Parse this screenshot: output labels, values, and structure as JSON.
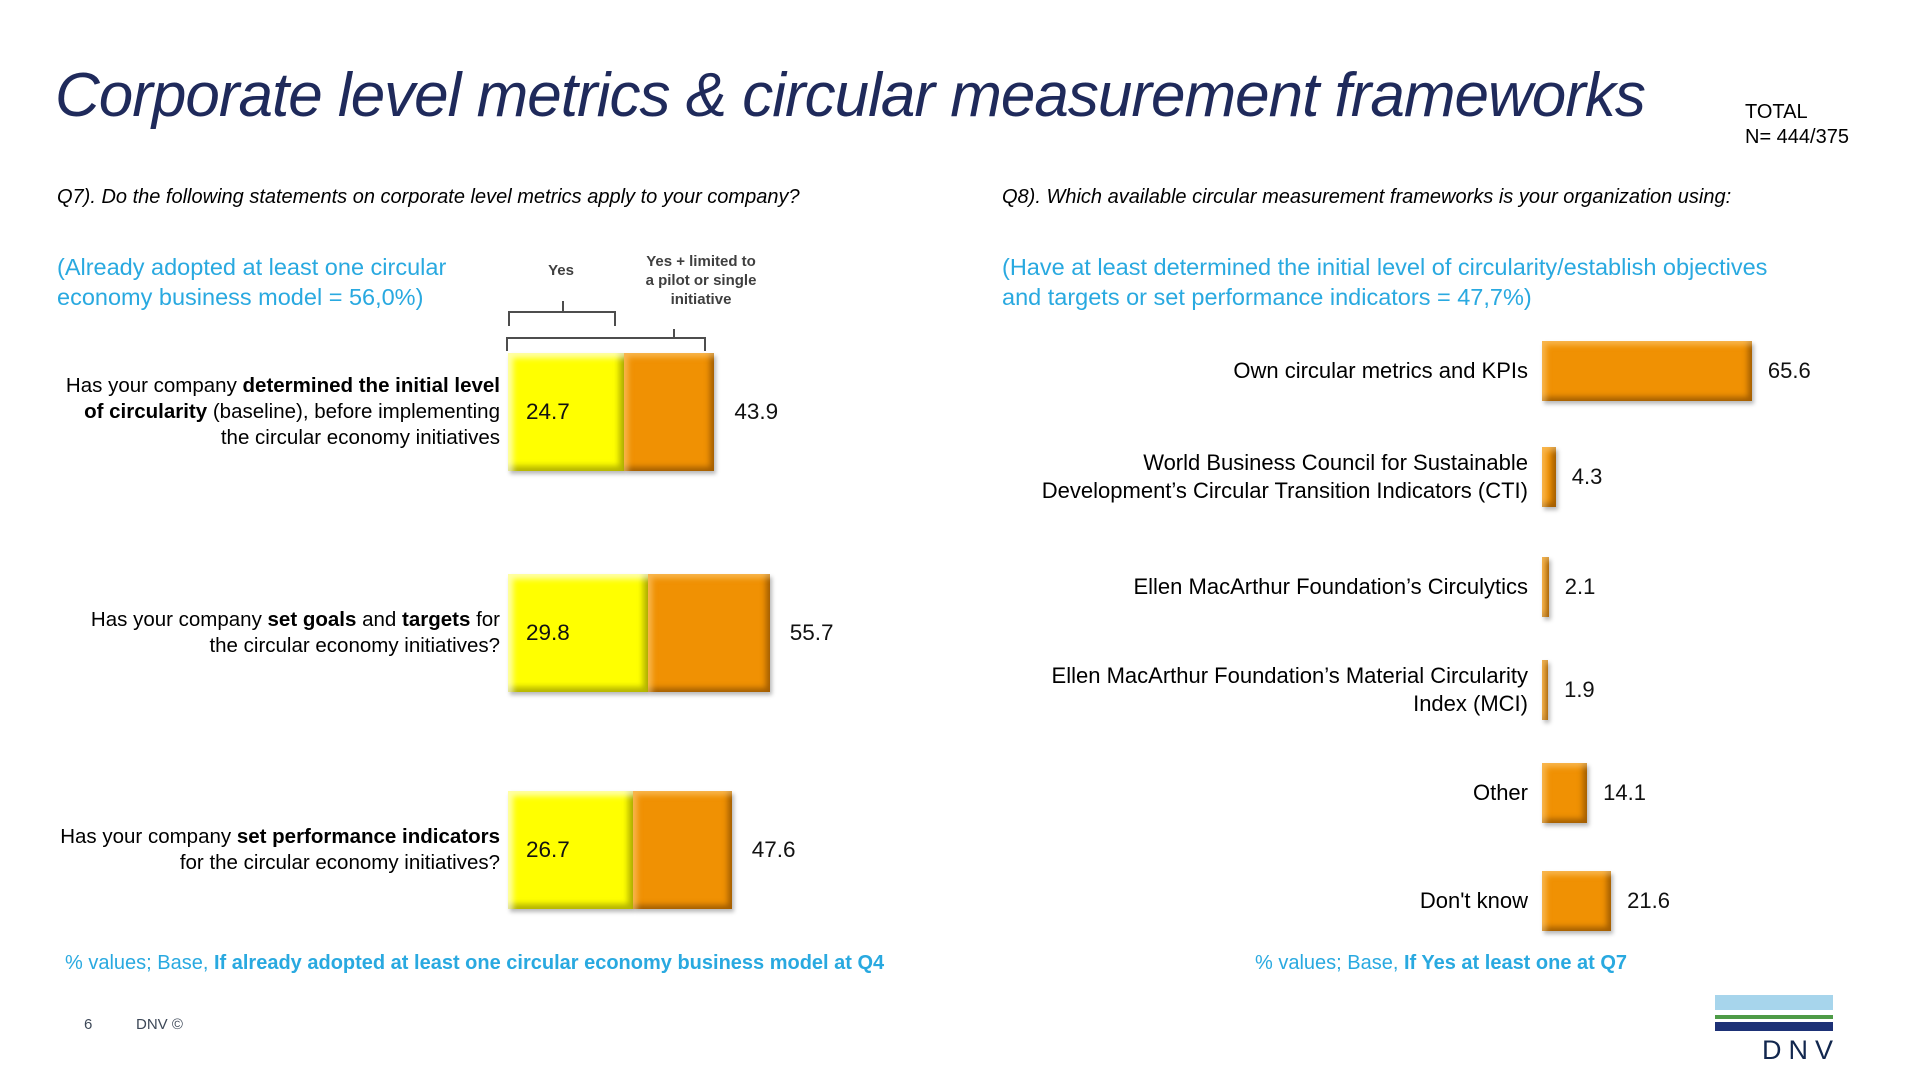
{
  "slide": {
    "title": "Corporate level metrics & circular measurement frameworks",
    "total_label": "TOTAL",
    "total_n": "N= 444/375",
    "page_number": "6",
    "copyright": "DNV ©",
    "logo_text": "DNV"
  },
  "colors": {
    "title_navy": "#1F2A5B",
    "accent_blue": "#29A9E0",
    "bar_yellow": "#FFFF00",
    "bar_orange": "#F09103",
    "logo_light_blue": "#A7D5EC",
    "logo_green": "#4E9B47",
    "logo_dark_blue": "#1D3176"
  },
  "q7": {
    "question": "Q7). Do the following statements on corporate level metrics apply to your company?",
    "subtitle": "(Already adopted at least one circular\neconomy business model = 56,0%)",
    "legend_yes": "Yes",
    "legend_yes_plus": "Yes + limited to\na pilot or single\ninitiative",
    "footnote_prefix": "% values; Base, ",
    "footnote_bold": "If already adopted at least one circular economy business model at Q4",
    "rows": [
      {
        "label_html": "Has your company <b>determined the initial level of circularity</b> (baseline), before implementing the circular economy initiatives",
        "yes": 24.7,
        "yes_plus": 43.9
      },
      {
        "label_html": "Has your company <b>set goals</b> and <b>targets</b> for the circular economy initiatives?",
        "yes": 29.8,
        "yes_plus": 55.7
      },
      {
        "label_html": "Has your company <b>set performance indicators</b> for the circular economy initiatives?",
        "yes": 26.7,
        "yes_plus": 47.6
      }
    ]
  },
  "q8": {
    "question": "Q8). Which available circular measurement frameworks is your organization using:",
    "subtitle": "(Have at least determined the initial level of circularity/establish objectives\nand targets or set performance indicators = 47,7%)",
    "footnote_prefix": "% values; Base, ",
    "footnote_bold": "If Yes at least one at Q7",
    "rows": [
      {
        "label": "Own circular metrics and KPIs",
        "value": 65.6
      },
      {
        "label": "World Business Council for Sustainable Development’s Circular Transition Indicators (CTI)",
        "value": 4.3
      },
      {
        "label": "Ellen MacArthur Foundation’s Circulytics",
        "value": 2.1
      },
      {
        "label": "Ellen MacArthur Foundation’s Material Circularity Index (MCI)",
        "value": 1.9
      },
      {
        "label": "Other",
        "value": 14.1
      },
      {
        "label": "Don't know",
        "value": 21.6
      }
    ]
  },
  "chart_data": [
    {
      "type": "bar",
      "orientation": "horizontal",
      "stacked": true,
      "title": "Q7). Do the following statements on corporate level metrics apply to your company?",
      "subtitle": "(Already adopted at least one circular economy business model = 56,0%)",
      "categories": [
        "Has your company determined the initial level of circularity (baseline), before implementing the circular economy initiatives",
        "Has your company set goals and targets for the circular economy initiatives?",
        "Has your company set performance indicators for the circular economy initiatives?"
      ],
      "series": [
        {
          "name": "Yes",
          "values": [
            24.7,
            29.8,
            26.7
          ],
          "color": "#FFFF00"
        },
        {
          "name": "Yes + limited to a pilot or single initiative",
          "values": [
            43.9,
            55.7,
            47.6
          ],
          "color": "#F09103",
          "note": "cumulative total; orange segment spans from the Yes value to this total"
        }
      ],
      "value_labels": "Yes value shown inside yellow bar, total shown right of orange bar",
      "legend_position": "top, indicated with brackets over first bar group",
      "grid": false,
      "footnote": "% values; Base, If already adopted at least one circular economy business model at Q4"
    },
    {
      "type": "bar",
      "orientation": "horizontal",
      "title": "Q8). Which available circular measurement frameworks is your organization using:",
      "subtitle": "(Have at least determined the initial level of circularity/establish objectives and targets or set performance indicators = 47,7%)",
      "categories": [
        "Own circular metrics and KPIs",
        "World Business Council for Sustainable Development’s Circular Transition Indicators (CTI)",
        "Ellen MacArthur Foundation’s Circulytics",
        "Ellen MacArthur Foundation’s Material Circularity Index (MCI)",
        "Other",
        "Don't know"
      ],
      "values": [
        65.6,
        4.3,
        2.1,
        1.9,
        14.1,
        21.6
      ],
      "color": "#F09103",
      "value_labels": "shown right of each bar",
      "grid": false,
      "footnote": "% values; Base, If Yes at least one at Q7"
    }
  ]
}
